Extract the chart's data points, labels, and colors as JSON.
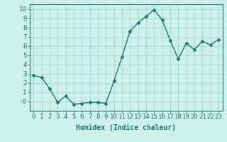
{
  "x": [
    0,
    1,
    2,
    3,
    4,
    5,
    6,
    7,
    8,
    9,
    10,
    11,
    12,
    13,
    14,
    15,
    16,
    17,
    18,
    19,
    20,
    21,
    22,
    23
  ],
  "y": [
    2.8,
    2.6,
    1.4,
    -0.1,
    0.6,
    -0.3,
    -0.2,
    -0.1,
    -0.1,
    -0.2,
    2.2,
    4.8,
    7.6,
    8.5,
    9.2,
    9.9,
    8.8,
    6.6,
    4.6,
    6.3,
    5.6,
    6.5,
    6.1,
    6.7
  ],
  "line_color": "#1a7a6e",
  "marker": "D",
  "marker_size": 2.5,
  "bg_color": "#cef0eb",
  "grid_color": "#a0d8d0",
  "xlabel": "Humidex (Indice chaleur)",
  "ylabel": "",
  "title": "",
  "xlim": [
    -0.5,
    23.5
  ],
  "ylim": [
    -1.0,
    10.5
  ],
  "yticks": [
    0,
    1,
    2,
    3,
    4,
    5,
    6,
    7,
    8,
    9,
    10
  ],
  "xticks": [
    0,
    1,
    2,
    3,
    4,
    5,
    6,
    7,
    8,
    9,
    10,
    11,
    12,
    13,
    14,
    15,
    16,
    17,
    18,
    19,
    20,
    21,
    22,
    23
  ],
  "xlabel_fontsize": 7,
  "tick_fontsize": 6.5,
  "tick_color": "#1a7a6e",
  "axis_color": "#1a7a6e",
  "ytick_labels": [
    "-0",
    "1",
    "2",
    "3",
    "4",
    "5",
    "6",
    "7",
    "8",
    "9",
    "10"
  ]
}
